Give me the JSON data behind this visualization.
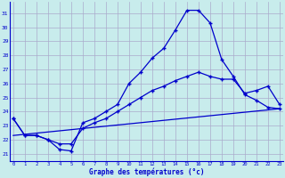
{
  "xlabel": "Graphe des températures (°c)",
  "bg_color": "#c8ecec",
  "grid_color": "#aaaacc",
  "line_color": "#0000cc",
  "x_ticks": [
    0,
    1,
    2,
    3,
    4,
    5,
    6,
    7,
    8,
    9,
    10,
    11,
    12,
    13,
    14,
    15,
    16,
    17,
    18,
    19,
    20,
    21,
    22,
    23
  ],
  "y_ticks": [
    21,
    22,
    23,
    24,
    25,
    26,
    27,
    28,
    29,
    30,
    31
  ],
  "ylim": [
    20.5,
    31.8
  ],
  "xlim": [
    -0.3,
    23.3
  ],
  "line1_x": [
    0,
    1,
    2,
    3,
    4,
    5,
    6,
    7,
    8,
    9,
    10,
    11,
    12,
    13,
    14,
    15,
    16,
    17,
    18,
    19,
    20,
    21,
    22,
    23
  ],
  "line1_y": [
    23.5,
    22.3,
    22.3,
    22.0,
    21.3,
    21.2,
    23.2,
    23.5,
    24.0,
    24.5,
    26.0,
    26.8,
    27.8,
    28.5,
    29.8,
    31.2,
    31.2,
    30.3,
    27.7,
    26.5,
    25.2,
    24.8,
    24.3,
    24.2
  ],
  "line2_x": [
    0,
    1,
    2,
    3,
    4,
    5,
    6,
    7,
    8,
    9,
    10,
    11,
    12,
    13,
    14,
    15,
    16,
    17,
    18,
    19,
    20,
    21,
    22,
    23
  ],
  "line2_y": [
    23.5,
    22.3,
    22.3,
    22.0,
    21.7,
    21.7,
    22.8,
    23.2,
    23.5,
    24.0,
    24.5,
    25.0,
    25.5,
    25.8,
    26.2,
    26.5,
    26.8,
    26.5,
    26.3,
    26.3,
    25.3,
    25.5,
    25.8,
    24.5
  ],
  "line3_x": [
    0,
    23
  ],
  "line3_y": [
    22.3,
    24.2
  ]
}
